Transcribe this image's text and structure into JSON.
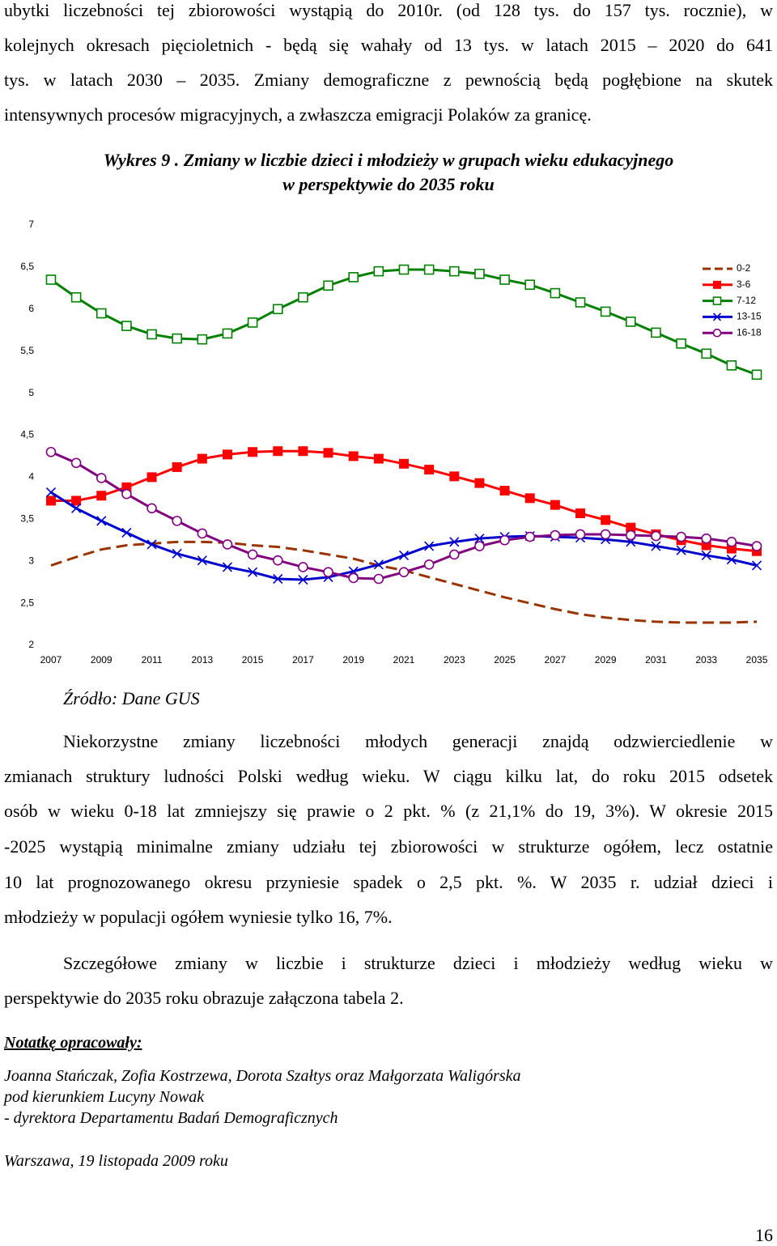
{
  "paragraph_1": [
    "ubytki liczebności tej zbiorowości wystąpią do 2010r. (od 128 tys. do 157 tys. rocznie), w",
    "kolejnych okresach pięcioletnich - będą się wahały od 13 tys. w latach 2015 – 2020 do 641",
    "tys. w latach 2030 – 2035. Zmiany demograficzne z pewnością będą pogłębione na skutek",
    "intensywnych procesów migracyjnych, a zwłaszcza emigracji Polaków za granicę."
  ],
  "figure_title": [
    "Wykres 9 . Zmiany w liczbie dzieci i młodzieży w grupach wieku edukacyjnego",
    "w perspektywie do 2035 roku"
  ],
  "chart_data": {
    "type": "line",
    "x": [
      2007,
      2008,
      2009,
      2010,
      2011,
      2012,
      2013,
      2014,
      2015,
      2016,
      2017,
      2018,
      2019,
      2020,
      2021,
      2022,
      2023,
      2024,
      2025,
      2026,
      2027,
      2028,
      2029,
      2030,
      2031,
      2032,
      2033,
      2034,
      2035
    ],
    "xlim": [
      2006.5,
      2035.5
    ],
    "xticks": [
      2007,
      2009,
      2011,
      2013,
      2015,
      2017,
      2019,
      2021,
      2023,
      2025,
      2027,
      2029,
      2031,
      2033,
      2035
    ],
    "ylim": [
      2,
      7
    ],
    "yticks": [
      2,
      {
        "value": 2.5,
        "label": "2,5"
      },
      3,
      {
        "value": 3.5,
        "label": "3,5"
      },
      4,
      {
        "value": 4.5,
        "label": "4,5"
      },
      5,
      {
        "value": 5.5,
        "label": "5,5"
      },
      6,
      {
        "value": 6.5,
        "label": "6,5"
      },
      7
    ],
    "grid": false,
    "legend": "right",
    "series": [
      {
        "name": "0-2",
        "color": "#993300",
        "dashed": true,
        "marker": "none",
        "values": [
          2.95,
          3.05,
          3.14,
          3.19,
          3.21,
          3.23,
          3.23,
          3.22,
          3.19,
          3.17,
          3.13,
          3.08,
          3.03,
          2.95,
          2.89,
          2.81,
          2.73,
          2.65,
          2.57,
          2.5,
          2.43,
          2.37,
          2.33,
          2.3,
          2.28,
          2.27,
          2.27,
          2.27,
          2.28
        ]
      },
      {
        "name": "3-6",
        "color": "#ff0000",
        "dashed": false,
        "marker": "square",
        "values": [
          3.72,
          3.72,
          3.78,
          3.88,
          4.0,
          4.12,
          4.22,
          4.27,
          4.3,
          4.31,
          4.31,
          4.29,
          4.25,
          4.22,
          4.16,
          4.09,
          4.01,
          3.93,
          3.84,
          3.75,
          3.67,
          3.57,
          3.49,
          3.4,
          3.32,
          3.25,
          3.19,
          3.15,
          3.12
        ]
      },
      {
        "name": "7-12",
        "color": "#008000",
        "dashed": false,
        "marker": "square-open",
        "values": [
          6.35,
          6.14,
          5.95,
          5.8,
          5.7,
          5.65,
          5.64,
          5.71,
          5.84,
          6.0,
          6.14,
          6.28,
          6.38,
          6.45,
          6.47,
          6.47,
          6.45,
          6.42,
          6.35,
          6.29,
          6.19,
          6.08,
          5.97,
          5.85,
          5.72,
          5.59,
          5.47,
          5.33,
          5.22
        ]
      },
      {
        "name": "13-15",
        "color": "#0000cc",
        "dashed": false,
        "marker": "x",
        "values": [
          3.82,
          3.63,
          3.48,
          3.34,
          3.2,
          3.09,
          3.01,
          2.93,
          2.87,
          2.79,
          2.78,
          2.81,
          2.88,
          2.96,
          3.07,
          3.18,
          3.23,
          3.27,
          3.29,
          3.3,
          3.29,
          3.28,
          3.26,
          3.23,
          3.18,
          3.13,
          3.07,
          3.02,
          2.95
        ]
      },
      {
        "name": "16-18",
        "color": "#800080",
        "dashed": false,
        "marker": "circle-open",
        "values": [
          4.3,
          4.17,
          3.99,
          3.8,
          3.63,
          3.48,
          3.33,
          3.2,
          3.08,
          3.01,
          2.93,
          2.87,
          2.8,
          2.79,
          2.87,
          2.96,
          3.08,
          3.18,
          3.25,
          3.29,
          3.31,
          3.32,
          3.32,
          3.31,
          3.3,
          3.29,
          3.27,
          3.23,
          3.18
        ]
      }
    ]
  },
  "source": "Źródło: Dane GUS",
  "paragraph_2": [
    "Niekorzystne zmiany liczebności młodych generacji znajdą odzwierciedlenie w",
    "zmianach struktury ludności Polski według wieku. W ciągu kilku lat, do roku 2015 odsetek",
    "osób w wieku 0-18 lat zmniejszy się prawie o 2 pkt. % (z 21,1% do 19, 3%). W okresie 2015",
    "-2025 wystąpią minimalne zmiany udziału tej zbiorowości w strukturze ogółem, lecz ostatnie",
    "10 lat prognozowanego okresu przyniesie spadek o 2,5 pkt. %. W 2035 r. udział dzieci i",
    "młodzieży w populacji ogółem wyniesie tylko 16, 7%."
  ],
  "paragraph_3": [
    "Szczegółowe zmiany w liczbie i strukturze dzieci i młodzieży według wieku w",
    "perspektywie do 2035 roku obrazuje załączona tabela 2."
  ],
  "notes_heading": "Notatkę opracowały:",
  "authors": [
    "Joanna Stańczak, Zofia Kostrzewa, Dorota Szałtys oraz Małgorzata Waligórska",
    "pod kierunkiem Lucyny Nowak",
    "- dyrektora Departamentu Badań Demograficznych"
  ],
  "date": "Warszawa, 19 listopada 2009 roku",
  "page_number": "16"
}
